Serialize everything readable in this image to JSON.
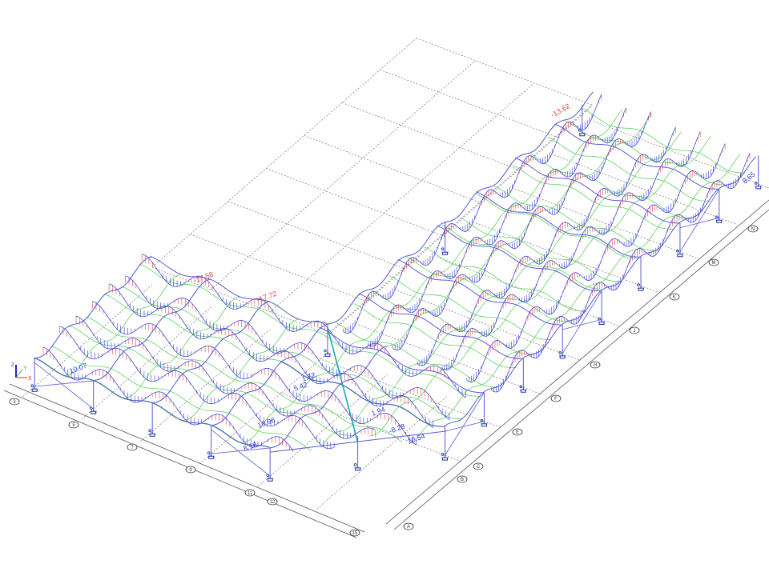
{
  "colors": {
    "hogging_moment": "#e04848",
    "sagging_moment": "#3a3ad8",
    "roof_mesh": "#4ccc4c",
    "frame": "#5a5ad8",
    "plan_grid": "#777777",
    "support": "#1a2fb0",
    "highlight_member": "#19a8b8",
    "axis": "#555555"
  },
  "value_labels": [
    {
      "text": "-17.72",
      "kind": "hogging"
    },
    {
      "text": "-17.58",
      "kind": "hogging"
    },
    {
      "text": "5.42",
      "kind": "sagging"
    },
    {
      "text": "1.52",
      "kind": "sagging"
    },
    {
      "text": "1.94",
      "kind": "sagging"
    },
    {
      "text": "-8.28",
      "kind": "sagging"
    },
    {
      "text": "10.54",
      "kind": "sagging"
    },
    {
      "text": "10.96",
      "kind": "sagging"
    },
    {
      "text": "8.18",
      "kind": "sagging"
    },
    {
      "text": "-13.62",
      "kind": "hogging"
    },
    {
      "text": "10.07",
      "kind": "sagging"
    },
    {
      "text": "8.65",
      "kind": "sagging"
    }
  ],
  "grid_axis_numbers": [
    "3",
    "5",
    "7",
    "9",
    "11",
    "12",
    "15"
  ],
  "grid_axis_letters": [
    "A",
    "B",
    "C",
    "E",
    "F",
    "H",
    "J",
    "K",
    "M",
    "N"
  ],
  "coordinate_triad": {
    "x": "X",
    "y": "Y",
    "z": "Z"
  }
}
